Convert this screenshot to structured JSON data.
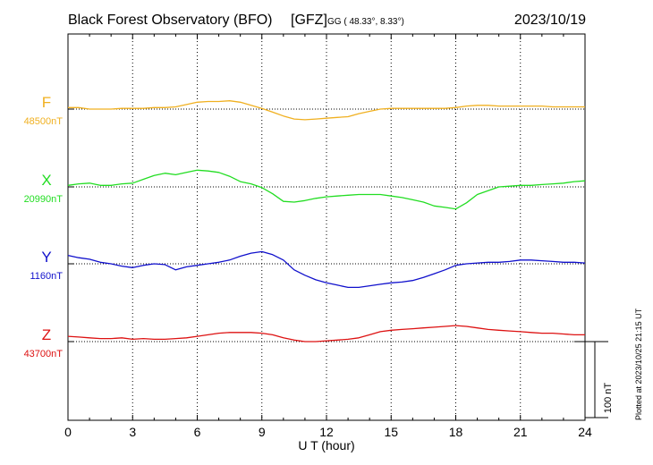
{
  "header": {
    "title": "Black Forest Observatory (BFO)",
    "gfz": "[GFZ]",
    "coords": "GG ( 48.33°,   8.33°)",
    "date": "2023/10/19"
  },
  "plotted_note": "Plotted at 2023/10/25 21:15 UT",
  "chart_data": {
    "type": "line",
    "xlabel": "U T (hour)",
    "xlim": [
      0,
      24
    ],
    "xticks": [
      0,
      3,
      6,
      9,
      12,
      15,
      18,
      21,
      24
    ],
    "xtick_labels": [
      "0",
      "3",
      "6",
      "9",
      "12",
      "15",
      "18",
      "21",
      "24"
    ],
    "scale_bar_label": "100 nT",
    "scale_bar_nT": 100,
    "grid": true,
    "series": [
      {
        "name": "F",
        "baseline_label": "48500nT",
        "baseline_nT": 48500,
        "color": "#f0b020",
        "x": [
          0,
          0.5,
          1,
          1.5,
          2,
          2.5,
          3,
          3.5,
          4,
          4.5,
          5,
          5.5,
          6,
          6.5,
          7,
          7.5,
          8,
          8.5,
          9,
          9.5,
          10,
          10.5,
          11,
          11.5,
          12,
          12.5,
          13,
          13.5,
          14,
          14.5,
          15,
          15.5,
          16,
          16.5,
          17,
          17.5,
          18,
          18.5,
          19,
          19.5,
          20,
          20.5,
          21,
          21.5,
          22,
          22.5,
          23,
          23.5,
          24
        ],
        "values": [
          2,
          2,
          0,
          0,
          0,
          1,
          1,
          1,
          2,
          2,
          3,
          6,
          9,
          10,
          10,
          11,
          9,
          5,
          1,
          -4,
          -9,
          -13,
          -14,
          -13,
          -12,
          -11,
          -10,
          -6,
          -3,
          0,
          1,
          1,
          1,
          1,
          1,
          1,
          2,
          4,
          5,
          5,
          4,
          4,
          4,
          4,
          4,
          3,
          3,
          3,
          3
        ]
      },
      {
        "name": "X",
        "baseline_label": "20990nT",
        "baseline_nT": 20990,
        "color": "#22dd22",
        "x": [
          0,
          0.5,
          1,
          1.5,
          2,
          2.5,
          3,
          3.5,
          4,
          4.5,
          5,
          5.5,
          6,
          6.5,
          7,
          7.5,
          8,
          8.5,
          9,
          9.5,
          10,
          10.5,
          11,
          11.5,
          12,
          12.5,
          13,
          13.5,
          14,
          14.5,
          15,
          15.5,
          16,
          16.5,
          17,
          17.5,
          18,
          18.5,
          19,
          19.5,
          20,
          20.5,
          21,
          21.5,
          22,
          22.5,
          23,
          23.5,
          24
        ],
        "values": [
          2,
          4,
          5,
          2,
          2,
          4,
          5,
          10,
          15,
          18,
          16,
          19,
          22,
          21,
          19,
          14,
          7,
          4,
          -1,
          -9,
          -19,
          -20,
          -18,
          -15,
          -13,
          -12,
          -11,
          -10,
          -10,
          -10,
          -12,
          -14,
          -17,
          -20,
          -25,
          -27,
          -29,
          -21,
          -10,
          -5,
          0,
          1,
          2,
          2,
          3,
          4,
          5,
          7,
          8
        ]
      },
      {
        "name": "Y",
        "baseline_label": "1160nT",
        "baseline_nT": 1160,
        "color": "#1010cc",
        "x": [
          0,
          0.5,
          1,
          1.5,
          2,
          2.5,
          3,
          3.5,
          4,
          4.5,
          5,
          5.5,
          6,
          6.5,
          7,
          7.5,
          8,
          8.5,
          9,
          9.5,
          10,
          10.5,
          11,
          11.5,
          12,
          12.5,
          13,
          13.5,
          14,
          14.5,
          15,
          15.5,
          16,
          16.5,
          17,
          17.5,
          18,
          18.5,
          19,
          19.5,
          20,
          20.5,
          21,
          21.5,
          22,
          22.5,
          23,
          23.5,
          24
        ],
        "values": [
          11,
          8,
          6,
          2,
          0,
          -3,
          -5,
          -2,
          0,
          -1,
          -8,
          -4,
          -2,
          0,
          2,
          5,
          10,
          14,
          16,
          12,
          5,
          -8,
          -15,
          -21,
          -25,
          -28,
          -31,
          -31,
          -29,
          -27,
          -25,
          -24,
          -22,
          -18,
          -13,
          -8,
          -2,
          0,
          1,
          2,
          2,
          3,
          5,
          5,
          4,
          3,
          2,
          2,
          1
        ]
      },
      {
        "name": "Z",
        "baseline_label": "43700nT",
        "baseline_nT": 43700,
        "color": "#dd1111",
        "x": [
          0,
          0.5,
          1,
          1.5,
          2,
          2.5,
          3,
          3.5,
          4,
          4.5,
          5,
          5.5,
          6,
          6.5,
          7,
          7.5,
          8,
          8.5,
          9,
          9.5,
          10,
          10.5,
          11,
          11.5,
          12,
          12.5,
          13,
          13.5,
          14,
          14.5,
          15,
          15.5,
          16,
          16.5,
          17,
          17.5,
          18,
          18.5,
          19,
          19.5,
          20,
          20.5,
          21,
          21.5,
          22,
          22.5,
          23,
          23.5,
          24
        ],
        "values": [
          7,
          6,
          5,
          4,
          4,
          5,
          3,
          4,
          3,
          3,
          4,
          5,
          7,
          9,
          11,
          12,
          12,
          12,
          11,
          9,
          5,
          2,
          0,
          0,
          1,
          2,
          3,
          5,
          9,
          13,
          15,
          16,
          17,
          18,
          19,
          20,
          21,
          20,
          18,
          16,
          15,
          14,
          13,
          12,
          11,
          11,
          10,
          9,
          9
        ]
      }
    ]
  }
}
